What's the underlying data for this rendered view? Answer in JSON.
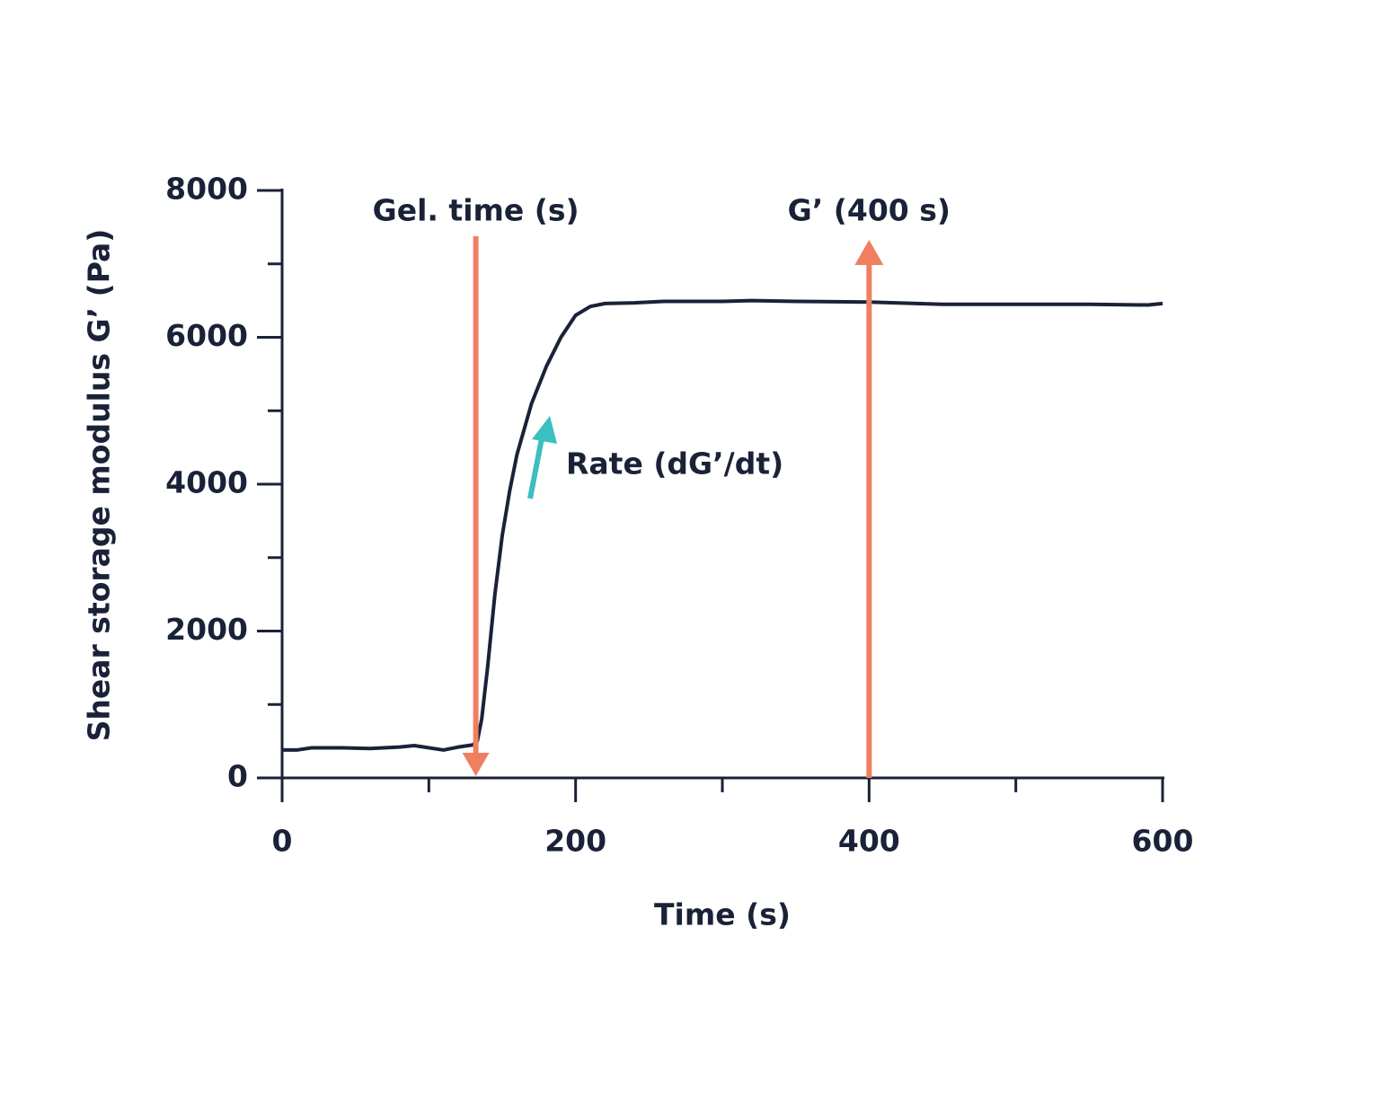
{
  "chart_data": {
    "type": "line",
    "x_label": "Time (s)",
    "y_label": "Shear storage modulus G’ (Pa)",
    "x": [
      0,
      10,
      20,
      40,
      60,
      80,
      90,
      110,
      120,
      130,
      133,
      136,
      140,
      145,
      150,
      155,
      160,
      170,
      180,
      190,
      200,
      210,
      220,
      240,
      260,
      300,
      320,
      350,
      400,
      450,
      500,
      550,
      590,
      600
    ],
    "series": [
      {
        "color": "#1a2238",
        "values": [
          380,
          380,
          410,
          410,
          400,
          420,
          440,
          380,
          420,
          450,
          500,
          800,
          1500,
          2500,
          3300,
          3900,
          4400,
          5100,
          5600,
          6000,
          6300,
          6420,
          6460,
          6470,
          6490,
          6490,
          6500,
          6490,
          6480,
          6450,
          6450,
          6450,
          6440,
          6460
        ]
      }
    ],
    "xlim": [
      0,
      600
    ],
    "xticks": [
      0,
      200,
      400,
      600
    ],
    "x_minor_ticks": [
      100,
      300,
      500
    ],
    "ylim": [
      0,
      8000
    ],
    "yticks": [
      0,
      2000,
      4000,
      6000,
      8000
    ],
    "y_minor_ticks": [
      1000,
      3000,
      5000,
      7000
    ],
    "annotations": [
      {
        "text": "Gel. time (s)",
        "x": 132,
        "color": "#f07f5f"
      },
      {
        "text": "G’ (400 s)",
        "x": 400,
        "color": "#f07f5f"
      },
      {
        "text": "Rate (dG’/dt)",
        "color": "#3bbfc0"
      }
    ]
  }
}
